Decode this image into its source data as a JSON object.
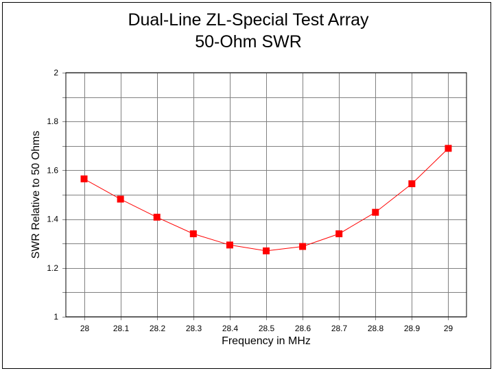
{
  "chart_data": {
    "type": "line",
    "title": "Dual-Line ZL-Special Test Array",
    "subtitle": "50-Ohm SWR",
    "xlabel": "Frequency in MHz",
    "ylabel": "SWR Relative to 50 Ohms",
    "x": [
      28,
      28.1,
      28.2,
      28.3,
      28.4,
      28.5,
      28.6,
      28.7,
      28.8,
      28.9,
      29
    ],
    "x_tick_labels": [
      "28",
      "28.1",
      "28.2",
      "28.3",
      "28.4",
      "28.5",
      "28.6",
      "28.7",
      "28.8",
      "28.9",
      "29"
    ],
    "y_tick_labels": [
      "1",
      "1.2",
      "1.4",
      "1.6",
      "1.8",
      "2"
    ],
    "xlim": [
      27.95,
      29.05
    ],
    "ylim": [
      1,
      2
    ],
    "grid": true,
    "series": [
      {
        "values": [
          1.565,
          1.482,
          1.408,
          1.34,
          1.294,
          1.27,
          1.288,
          1.34,
          1.428,
          1.545,
          1.69
        ],
        "color": "#ff0000",
        "marker": "square"
      }
    ]
  }
}
